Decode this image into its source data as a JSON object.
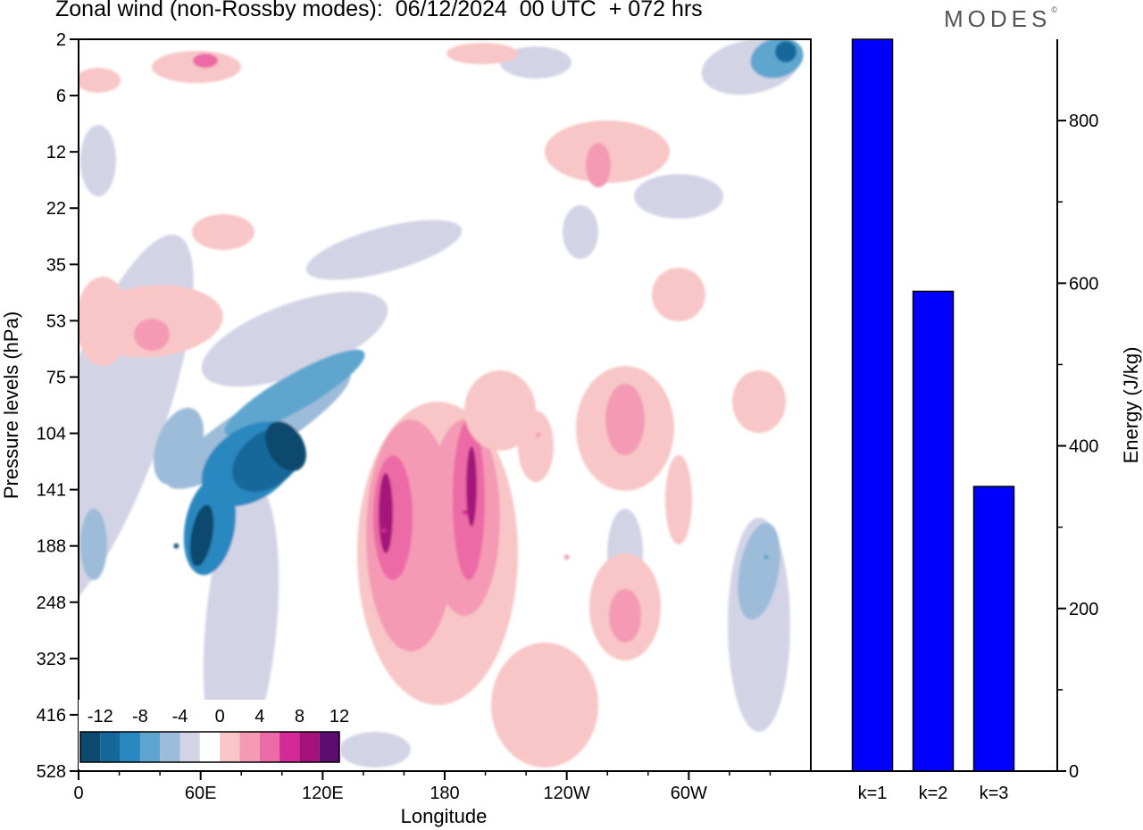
{
  "header": {
    "title": "Zonal wind (non-Rossby modes):  06/12/2024  00 UTC  + 072 hrs",
    "logo": "MODES",
    "logo_mark": "©"
  },
  "chart_data": [
    {
      "type": "heatmap",
      "xlabel": "Longitude",
      "ylabel": "Pressure levels (hPa)",
      "x_ticks": [
        "0",
        "60E",
        "120E",
        "180",
        "120W",
        "60W"
      ],
      "y_ticks": [
        "2",
        "6",
        "12",
        "22",
        "35",
        "53",
        "75",
        "104",
        "141",
        "188",
        "248",
        "323",
        "416",
        "528"
      ],
      "colorbar": {
        "labels": [
          "-12",
          "-8",
          "-4",
          "0",
          "4",
          "8",
          "12"
        ],
        "levels": [
          -14,
          -12,
          -10,
          -8,
          -6,
          -4,
          -2,
          2,
          4,
          6,
          8,
          10,
          12,
          14
        ],
        "colors": [
          "#0c4a6e",
          "#13679b",
          "#2a88c0",
          "#5ea6cf",
          "#9dbcd9",
          "#d2d4e6",
          "#ffffff",
          "#f8c6c6",
          "#f49ab5",
          "#ec6aa5",
          "#d32a95",
          "#a4127a",
          "#5c0b6e"
        ]
      },
      "features": [
        {
          "name": "negative-band",
          "lon": 100,
          "level": 120,
          "value": -14
        },
        {
          "name": "negative-low",
          "lon": 48,
          "level": 188,
          "value": -12
        },
        {
          "name": "positive-core",
          "lon": 190,
          "level": 160,
          "value": 10
        },
        {
          "name": "positive-core",
          "lon": 150,
          "level": 175,
          "value": 10
        },
        {
          "name": "positive-east",
          "lon": 226,
          "level": 105,
          "value": 6
        },
        {
          "name": "positive-east",
          "lon": 240,
          "level": 200,
          "value": 6
        },
        {
          "name": "positive-upper",
          "lon": 15,
          "level": 50,
          "value": 4
        },
        {
          "name": "negative-east",
          "lon": 338,
          "level": 200,
          "value": -6
        },
        {
          "name": "negative-top",
          "lon": 350,
          "level": 4,
          "value": -6
        }
      ]
    },
    {
      "type": "bar",
      "categories": [
        "k=1",
        "k=2",
        "k=3"
      ],
      "values": [
        900,
        590,
        350
      ],
      "ylabel": "Energy (J/kg)",
      "ylim": [
        0,
        900
      ],
      "y_ticks": [
        0,
        200,
        400,
        600,
        800
      ],
      "bar_color": "#0000ff"
    }
  ]
}
